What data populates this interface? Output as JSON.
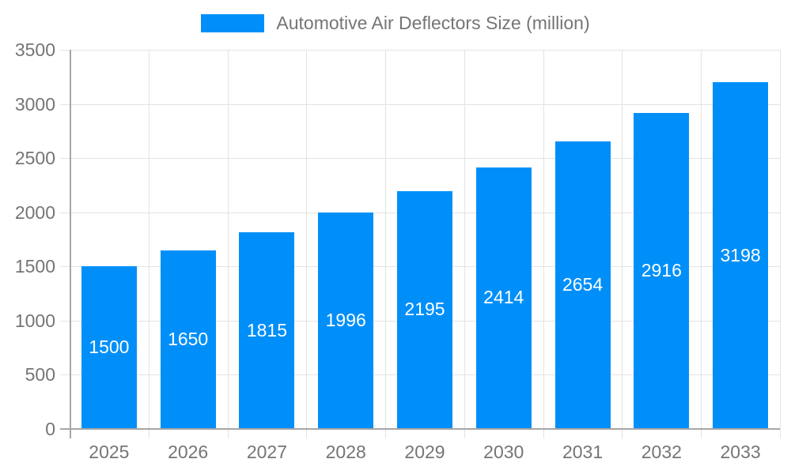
{
  "chart_data": {
    "type": "bar",
    "title": "Automotive Air Deflectors Size (million)",
    "legend": [
      {
        "label": "Automotive Air Deflectors Size (million)"
      }
    ],
    "legend_position": "top",
    "categories": [
      "2025",
      "2026",
      "2027",
      "2028",
      "2029",
      "2030",
      "2031",
      "2032",
      "2033"
    ],
    "values": [
      1500,
      1650,
      1815,
      1996,
      2195,
      2414,
      2654,
      2916,
      3198
    ],
    "bar_value_labels": [
      "1500",
      "1650",
      "1815",
      "1996",
      "2195",
      "2414",
      "2654",
      "2916",
      "3198"
    ],
    "xlabel": "",
    "ylabel": "",
    "ylim": [
      0,
      3500
    ],
    "ytick_step": 500,
    "yticks": [
      "0",
      "500",
      "1000",
      "1500",
      "2000",
      "2500",
      "3000",
      "3500"
    ],
    "grid": true,
    "colors": {
      "bar": "#008ff9",
      "grid": "#e3e3e3",
      "axis": "#a6a6a6",
      "tick_label": "#757575",
      "bar_label": "#ffffff"
    }
  }
}
